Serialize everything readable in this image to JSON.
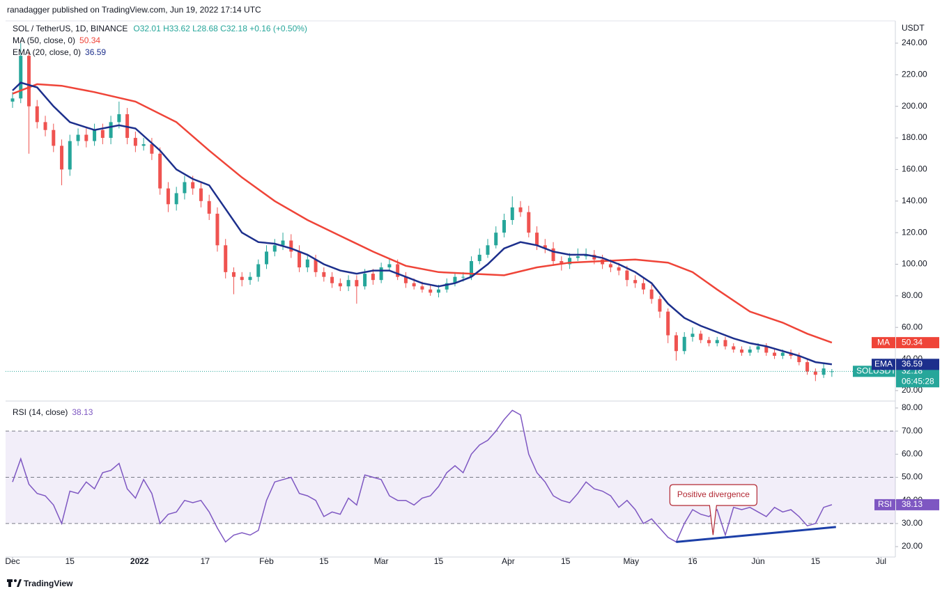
{
  "header": {
    "publisher": "ranadagger published on TradingView.com, Jun 19, 2022 17:14 UTC",
    "brand": "TradingView"
  },
  "chart_data": [
    {
      "type": "candlestick",
      "title": "SOL / TetherUS, 1D, BINANCE",
      "ohlc_text": "O32.01 H33.62 L28.68 C32.18 +0.16 (+0.50%)",
      "unit": "USDT",
      "last_price_label": "SOLUSDT",
      "countdown": "06:45:28",
      "up_color": "#26a69a",
      "down_color": "#ef5350",
      "xlim": [
        -1.7,
        215.5
      ],
      "ylim": [
        13.8,
        254.1
      ],
      "yticks": [
        {
          "value": 20,
          "label": "20.00"
        },
        {
          "value": 40,
          "label": "40.00"
        },
        {
          "value": 60,
          "label": "60.00"
        },
        {
          "value": 80,
          "label": "80.00"
        },
        {
          "value": 100,
          "label": "100.00"
        },
        {
          "value": 120,
          "label": "120.00"
        },
        {
          "value": 140,
          "label": "140.00"
        },
        {
          "value": 160,
          "label": "160.00"
        },
        {
          "value": 180,
          "label": "180.00"
        },
        {
          "value": 200,
          "label": "200.00"
        },
        {
          "value": 220,
          "label": "220.00"
        },
        {
          "value": 240,
          "label": "240.00"
        }
      ],
      "x": [
        0,
        2,
        4,
        6,
        8,
        10,
        12,
        14,
        16,
        18,
        20,
        22,
        24,
        26,
        28,
        30,
        32,
        34,
        36,
        38,
        40,
        42,
        44,
        46,
        48,
        50,
        52,
        54,
        56,
        58,
        60,
        62,
        64,
        66,
        68,
        70,
        72,
        74,
        76,
        78,
        80,
        82,
        84,
        86,
        88,
        90,
        92,
        94,
        96,
        98,
        100,
        102,
        104,
        106,
        108,
        110,
        112,
        114,
        116,
        118,
        120,
        122,
        124,
        126,
        128,
        130,
        132,
        134,
        136,
        138,
        140,
        142,
        144,
        146,
        148,
        150,
        152,
        154,
        156,
        158,
        160,
        162,
        164,
        166,
        168,
        170,
        172,
        174,
        176,
        178,
        180,
        182,
        184,
        186,
        188,
        190,
        192,
        194,
        196,
        198,
        200
      ],
      "open": [
        203,
        205,
        232,
        200,
        190,
        185,
        175,
        160,
        178,
        182,
        178,
        185,
        180,
        190,
        195,
        180,
        175,
        176,
        170,
        148,
        138,
        145,
        152,
        148,
        140,
        132,
        112,
        95,
        92,
        90,
        92,
        100,
        108,
        112,
        115,
        108,
        98,
        103,
        95,
        92,
        88,
        86,
        90,
        86,
        94,
        90,
        98,
        100,
        92,
        88,
        86,
        84,
        82,
        84,
        88,
        92,
        92,
        102,
        106,
        112,
        120,
        128,
        136,
        133,
        120,
        112,
        110,
        102,
        100,
        104,
        105,
        106,
        103,
        100,
        98,
        96,
        90,
        88,
        84,
        78,
        70,
        55,
        45,
        54,
        56,
        52,
        50,
        52,
        48,
        46,
        44,
        46,
        48,
        44,
        42,
        44,
        42,
        38,
        32,
        30,
        32.01
      ],
      "high": [
        209,
        240,
        235,
        204,
        194,
        189,
        179,
        182,
        186,
        186,
        189,
        189,
        194,
        203,
        199,
        184,
        180,
        180,
        174,
        152,
        149,
        156,
        156,
        152,
        144,
        136,
        116,
        98,
        95,
        95,
        103,
        112,
        116,
        120,
        119,
        112,
        106,
        106,
        98,
        95,
        91,
        93,
        93,
        97,
        97,
        101,
        104,
        103,
        95,
        91,
        89,
        87,
        87,
        91,
        95,
        95,
        105,
        110,
        116,
        124,
        132,
        143,
        140,
        137,
        124,
        116,
        114,
        105,
        107,
        110,
        110,
        109,
        106,
        103,
        101,
        99,
        93,
        91,
        87,
        80,
        72,
        57,
        57,
        60,
        58,
        54,
        54,
        54,
        50,
        48,
        48,
        50,
        50,
        46,
        46,
        46,
        44,
        40,
        34,
        37,
        33.62
      ],
      "low": [
        199,
        202,
        170,
        186,
        181,
        171,
        150,
        156,
        175,
        174,
        175,
        176,
        176,
        186,
        176,
        171,
        172,
        166,
        144,
        133,
        134,
        141,
        144,
        136,
        128,
        108,
        91,
        81,
        86,
        87,
        89,
        97,
        105,
        109,
        104,
        95,
        95,
        92,
        89,
        85,
        83,
        83,
        75,
        84,
        87,
        88,
        96,
        90,
        85,
        84,
        82,
        80,
        79,
        82,
        86,
        89,
        90,
        100,
        104,
        110,
        117,
        125,
        130,
        117,
        109,
        107,
        99,
        96,
        97,
        102,
        103,
        100,
        97,
        95,
        93,
        86,
        85,
        81,
        75,
        66,
        50,
        39,
        43,
        51,
        50,
        48,
        48,
        46,
        44,
        42,
        42,
        44,
        42,
        40,
        40,
        40,
        36,
        30,
        26,
        28,
        28.68
      ],
      "close": [
        205,
        232,
        200,
        190,
        185,
        175,
        160,
        178,
        182,
        178,
        185,
        180,
        190,
        195,
        180,
        175,
        176,
        170,
        148,
        138,
        145,
        152,
        148,
        140,
        132,
        112,
        95,
        92,
        90,
        92,
        100,
        108,
        112,
        115,
        108,
        98,
        103,
        95,
        92,
        88,
        86,
        90,
        86,
        94,
        90,
        98,
        100,
        92,
        88,
        86,
        84,
        82,
        84,
        88,
        92,
        92,
        102,
        106,
        112,
        120,
        128,
        136,
        133,
        120,
        112,
        110,
        102,
        100,
        104,
        105,
        106,
        103,
        100,
        98,
        96,
        90,
        88,
        84,
        78,
        70,
        55,
        45,
        54,
        56,
        52,
        50,
        52,
        48,
        46,
        44,
        46,
        48,
        44,
        42,
        44,
        42,
        38,
        32,
        30,
        34,
        32.18
      ],
      "overlays": [
        {
          "type": "line",
          "name": "MA",
          "label": "MA (50, close, 0)",
          "color": "#ef4438",
          "x": [
            0,
            6,
            12,
            20,
            30,
            40,
            48,
            56,
            64,
            72,
            80,
            88,
            96,
            104,
            112,
            120,
            128,
            136,
            144,
            152,
            160,
            166,
            172,
            180,
            188,
            194,
            200
          ],
          "values": [
            208,
            214,
            213,
            209,
            203,
            190,
            172,
            155,
            140,
            128,
            118,
            108,
            99,
            95,
            94,
            93,
            98,
            101,
            102,
            103,
            101,
            95,
            84,
            70,
            63,
            56,
            50.34
          ]
        },
        {
          "type": "line",
          "name": "EMA",
          "label": "EMA (20, close, 0)",
          "color": "#1c2f8c",
          "x": [
            0,
            2,
            6,
            10,
            14,
            20,
            26,
            30,
            36,
            40,
            44,
            48,
            52,
            56,
            60,
            64,
            68,
            72,
            76,
            80,
            84,
            88,
            92,
            96,
            100,
            104,
            108,
            112,
            116,
            120,
            124,
            128,
            132,
            136,
            140,
            144,
            148,
            152,
            156,
            160,
            164,
            168,
            172,
            176,
            180,
            184,
            188,
            192,
            196,
            200
          ],
          "values": [
            210,
            215,
            212,
            200,
            190,
            185,
            188,
            186,
            172,
            160,
            154,
            150,
            135,
            120,
            114,
            113,
            110,
            106,
            100,
            96,
            94,
            96,
            96,
            92,
            88,
            86,
            88,
            92,
            100,
            110,
            114,
            112,
            108,
            106,
            106,
            104,
            100,
            95,
            88,
            75,
            66,
            61,
            57,
            53,
            50,
            48,
            45,
            42,
            38,
            36.59
          ]
        }
      ]
    },
    {
      "type": "line",
      "xlim": [
        -1.7,
        215.5
      ],
      "ylim": [
        15.5,
        82.4
      ],
      "yticks": [
        {
          "value": 20,
          "label": "20.00"
        },
        {
          "value": 30,
          "label": "30.00"
        },
        {
          "value": 40,
          "label": "40.00"
        },
        {
          "value": 50,
          "label": "50.00"
        },
        {
          "value": 60,
          "label": "60.00"
        },
        {
          "value": 70,
          "label": "70.00"
        },
        {
          "value": 80,
          "label": "80.00"
        }
      ],
      "xticks": [
        {
          "value": 0,
          "label": "Dec"
        },
        {
          "value": 14,
          "label": "15"
        },
        {
          "value": 31,
          "label": "2022"
        },
        {
          "value": 47,
          "label": "17"
        },
        {
          "value": 62,
          "label": "Feb"
        },
        {
          "value": 76,
          "label": "15"
        },
        {
          "value": 90,
          "label": "Mar"
        },
        {
          "value": 104,
          "label": "15"
        },
        {
          "value": 121,
          "label": "Apr"
        },
        {
          "value": 135,
          "label": "15"
        },
        {
          "value": 151,
          "label": "May"
        },
        {
          "value": 166,
          "label": "16"
        },
        {
          "value": 182,
          "label": "Jun"
        },
        {
          "value": 196,
          "label": "15"
        },
        {
          "value": 212,
          "label": "Jul"
        }
      ],
      "band": [
        30,
        70
      ],
      "levels": [
        70,
        50,
        30
      ],
      "series": [
        {
          "name": "RSI",
          "label": "RSI (14, close)",
          "color": "#7e57c2",
          "x": [
            0,
            2,
            4,
            6,
            8,
            10,
            12,
            14,
            16,
            18,
            20,
            22,
            24,
            26,
            28,
            30,
            32,
            34,
            36,
            38,
            40,
            42,
            44,
            46,
            48,
            50,
            52,
            54,
            56,
            58,
            60,
            62,
            64,
            66,
            68,
            70,
            72,
            74,
            76,
            78,
            80,
            82,
            84,
            86,
            88,
            90,
            92,
            94,
            96,
            98,
            100,
            102,
            104,
            106,
            108,
            110,
            112,
            114,
            116,
            118,
            120,
            122,
            124,
            126,
            128,
            130,
            132,
            134,
            136,
            138,
            140,
            142,
            144,
            146,
            148,
            150,
            152,
            154,
            156,
            158,
            160,
            162,
            164,
            166,
            168,
            170,
            172,
            174,
            176,
            178,
            180,
            182,
            184,
            186,
            188,
            190,
            192,
            194,
            196,
            198,
            200
          ],
          "values": [
            48,
            58,
            47,
            43,
            42,
            38,
            30,
            44,
            43,
            48,
            45,
            52,
            53,
            56,
            45,
            41,
            49,
            43,
            30,
            34,
            35,
            40,
            39,
            40,
            35,
            28,
            22,
            25,
            26,
            25,
            27,
            40,
            48,
            49,
            50,
            43,
            42,
            40,
            33,
            35,
            34,
            41,
            38,
            51,
            50,
            49,
            42,
            40,
            40,
            38,
            41,
            42,
            46,
            52,
            55,
            52,
            60,
            64,
            66,
            70,
            75,
            79,
            77,
            60,
            52,
            48,
            42,
            40,
            39,
            43,
            48,
            45,
            44,
            42,
            37,
            40,
            36,
            30,
            32,
            28,
            24,
            22,
            30,
            36,
            34,
            33,
            36,
            25,
            37,
            36,
            37,
            35,
            33,
            37,
            35,
            36,
            33,
            29,
            30,
            37,
            38.13
          ]
        }
      ],
      "trendline": {
        "color": "#1c3fa8",
        "x": [
          162,
          201
        ],
        "values": [
          22,
          28.5
        ]
      },
      "annotation": {
        "text": "Positive divergence",
        "x": 171,
        "y": 25
      }
    }
  ]
}
